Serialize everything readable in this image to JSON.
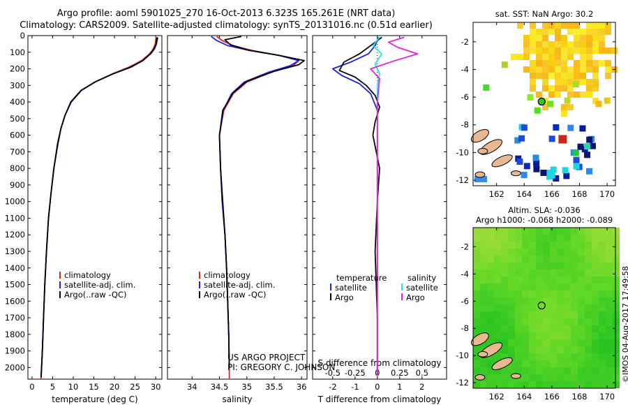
{
  "header": {
    "line1": "Argo profile: aoml 5901025_270 16-Oct-2013 6.323S 165.261E (NRT data)",
    "line2": "Climatology: CARS2009. Satellite-adjusted climatology: synTS_20131016.nc (0.51d earlier)"
  },
  "credit": "US ARGO PROJECT",
  "pi": "PI: GREGORY C. JOHNSON",
  "stamp": "©IMOS 04-Aug-2017 17:49:58",
  "colors": {
    "climatology": "#e8201a",
    "satellite": "#1a22e8",
    "argo": "#000000",
    "sat_salinity": "#22e0f0",
    "argo_salinity": "#e822d8"
  },
  "chart_data": [
    {
      "id": "temperature",
      "type": "line",
      "xlabel": "temperature (deg C)",
      "ylabel": "",
      "xlim": [
        -1,
        31.5
      ],
      "ylim": [
        2070,
        0
      ],
      "xticks": [
        "0",
        "5",
        "10",
        "15",
        "20",
        "25",
        "30"
      ],
      "xtick_values": [
        0,
        5,
        10,
        15,
        20,
        25,
        30
      ],
      "yticks": [
        "0",
        "100",
        "200",
        "300",
        "400",
        "500",
        "600",
        "700",
        "800",
        "900",
        "1000",
        "1100",
        "1200",
        "1300",
        "1400",
        "1500",
        "1600",
        "1700",
        "1800",
        "1900",
        "2000"
      ],
      "legend": [
        "climatology",
        "satellite-adj. clim.",
        "Argo(..raw -QC)"
      ],
      "series": [
        {
          "name": "climatology",
          "color": "#e8201a",
          "x": [
            30.1,
            29.9,
            29.4,
            28.5,
            26.6,
            23.5,
            19.5,
            15.2,
            12.0,
            9.5,
            8.0,
            7.0,
            6.3,
            5.3,
            4.6,
            4.0,
            3.5,
            3.1,
            2.8,
            2.5,
            2.2,
            2.1
          ],
          "depth": [
            10,
            50,
            80,
            110,
            150,
            190,
            230,
            280,
            330,
            400,
            480,
            560,
            650,
            800,
            950,
            1100,
            1300,
            1500,
            1700,
            1900,
            2060,
            2070
          ]
        },
        {
          "name": "satellite-adj. clim.",
          "color": "#1a22e8",
          "x": [
            30.5,
            30.2,
            29.7,
            28.8,
            26.9,
            23.8,
            19.6,
            15.3,
            12.0,
            9.5,
            8.0,
            7.0,
            6.3,
            5.3,
            4.6,
            4.0,
            3.5,
            3.1,
            2.8,
            2.5,
            2.2
          ],
          "depth": [
            10,
            50,
            80,
            110,
            150,
            190,
            230,
            280,
            330,
            400,
            480,
            560,
            650,
            800,
            950,
            1100,
            1300,
            1500,
            1700,
            1900,
            2060
          ]
        },
        {
          "name": "Argo(..raw -QC)",
          "color": "#000000",
          "x": [
            30.3,
            30.1,
            29.6,
            28.7,
            26.9,
            24.0,
            19.7,
            15.2,
            11.9,
            9.4,
            8.0,
            7.0,
            6.2,
            5.3,
            4.6,
            4.0,
            3.5,
            3.1,
            2.8,
            2.5,
            2.2
          ],
          "depth": [
            10,
            50,
            80,
            110,
            150,
            190,
            230,
            280,
            330,
            400,
            480,
            560,
            650,
            800,
            950,
            1100,
            1300,
            1500,
            1700,
            1900,
            2060
          ]
        }
      ]
    },
    {
      "id": "salinity",
      "type": "line",
      "xlabel": "salinity",
      "xlim": [
        33.55,
        36.1
      ],
      "ylim": [
        2070,
        0
      ],
      "xticks": [
        "34",
        "34.5",
        "35",
        "35.5",
        "36"
      ],
      "xtick_values": [
        34,
        34.5,
        35,
        35.5,
        36
      ],
      "legend": [
        "climatology",
        "satellite-adj. clim.",
        "Argo(..raw -QC)"
      ],
      "series": [
        {
          "name": "climatology",
          "color": "#e8201a",
          "x": [
            34.45,
            34.55,
            34.75,
            35.1,
            35.6,
            35.95,
            35.85,
            35.45,
            35.0,
            34.75,
            34.58,
            34.5,
            34.52,
            34.55,
            34.6,
            34.63,
            34.65,
            34.67,
            34.68,
            34.68
          ],
          "depth": [
            5,
            30,
            60,
            90,
            120,
            150,
            180,
            220,
            280,
            350,
            450,
            600,
            800,
            1000,
            1200,
            1400,
            1600,
            1800,
            2000,
            2070
          ]
        },
        {
          "name": "satellite-adj. clim.",
          "color": "#1a22e8",
          "x": [
            34.35,
            34.45,
            34.65,
            35.05,
            35.6,
            35.95,
            35.8,
            35.4,
            34.95,
            34.72,
            34.57,
            34.5,
            34.52,
            34.55,
            34.6,
            34.63,
            34.65,
            34.67,
            34.68
          ],
          "depth": [
            5,
            30,
            60,
            90,
            120,
            150,
            180,
            220,
            280,
            350,
            450,
            600,
            800,
            1000,
            1200,
            1400,
            1600,
            1800,
            2000
          ]
        },
        {
          "name": "Argo(..raw -QC)",
          "color": "#000000",
          "x": [
            34.9,
            34.6,
            34.7,
            35.0,
            35.6,
            36.05,
            35.95,
            35.5,
            35.0,
            34.75,
            34.56,
            34.5,
            34.52,
            34.56,
            34.6,
            34.63,
            34.65,
            34.67,
            34.68
          ],
          "depth": [
            5,
            25,
            55,
            85,
            120,
            150,
            175,
            215,
            275,
            345,
            450,
            600,
            800,
            1000,
            1200,
            1400,
            1600,
            1800,
            2000
          ]
        }
      ]
    },
    {
      "id": "difference",
      "type": "line",
      "xlabel": "T difference from climatology",
      "xlabel_top": "S difference from climatology",
      "xlim": [
        -2.9,
        3.1
      ],
      "ylim": [
        2070,
        0
      ],
      "xticks": [
        "-2",
        "-1",
        "0",
        "1",
        "2"
      ],
      "xtick_values": [
        -2,
        -1,
        0,
        1,
        2
      ],
      "xticks_top": [
        "-0.5",
        "-0.25",
        "0",
        "0.25",
        "0.5"
      ],
      "xtick_values_top": [
        -2,
        -1,
        0,
        1,
        2
      ],
      "legend": [
        "temperature",
        "satellite",
        "Argo",
        "salinity",
        "satellite",
        "Argo"
      ],
      "series": [
        {
          "name": "temperature satellite",
          "color": "#1a22e8",
          "x": [
            0.05,
            -0.1,
            -0.4,
            -1.2,
            -2.0,
            -1.6,
            -0.8,
            -0.3,
            0.0,
            0.0,
            0.0,
            0.0,
            0.0
          ],
          "depth": [
            10,
            60,
            110,
            160,
            200,
            240,
            290,
            350,
            450,
            600,
            1000,
            1500,
            2050
          ]
        },
        {
          "name": "temperature Argo",
          "color": "#000000",
          "x": [
            0.2,
            -0.3,
            -0.8,
            -1.5,
            -1.7,
            -1.0,
            -0.5,
            -0.1,
            0.1,
            -0.1,
            -0.2,
            0.1,
            0.0,
            -0.1,
            0.0,
            0.0
          ],
          "depth": [
            10,
            60,
            110,
            160,
            210,
            250,
            300,
            360,
            430,
            520,
            600,
            800,
            1000,
            1300,
            1700,
            2050
          ]
        },
        {
          "name": "salinity satellite",
          "color": "#22e0f0",
          "x": [
            0.1,
            -0.2,
            0.2,
            -0.1,
            0.1,
            0.0,
            0.0,
            0.0,
            0.0
          ],
          "depth": [
            10,
            60,
            110,
            170,
            230,
            300,
            500,
            1000,
            2050
          ]
        },
        {
          "name": "salinity Argo",
          "color": "#e822d8",
          "x": [
            1.2,
            0.5,
            0.9,
            1.8,
            0.8,
            -0.3,
            0.1,
            0.0,
            0.0,
            0.0
          ],
          "depth": [
            10,
            40,
            70,
            110,
            150,
            200,
            260,
            400,
            1000,
            2050
          ]
        }
      ]
    },
    {
      "id": "sst-map",
      "type": "heatmap",
      "title": "sat. SST: NaN Argo: 30.2",
      "xlim": [
        160.3,
        170.6
      ],
      "ylim": [
        -12.4,
        -0.6
      ],
      "xticks": [
        "162",
        "164",
        "166",
        "168",
        "170"
      ],
      "xtick_values": [
        162,
        164,
        166,
        168,
        170
      ],
      "yticks": [
        "-2",
        "-4",
        "-6",
        "-8",
        "-10",
        "-12"
      ],
      "ytick_values": [
        -2,
        -4,
        -6,
        -8,
        -10,
        -12
      ],
      "marker": {
        "lon": 165.261,
        "lat": -6.323,
        "color": "#2ec52e"
      }
    },
    {
      "id": "sla-map",
      "type": "heatmap",
      "title": "Altim. SLA: -0.036",
      "subtitle": "Argo h1000: -0.068 h2000: -0.089",
      "xlim": [
        160.3,
        170.6
      ],
      "ylim": [
        -12.4,
        -0.6
      ],
      "xticks": [
        "162",
        "164",
        "166",
        "168",
        "170"
      ],
      "xtick_values": [
        162,
        164,
        166,
        168,
        170
      ],
      "yticks": [
        "-2",
        "-4",
        "-6",
        "-8",
        "-10",
        "-12"
      ],
      "ytick_values": [
        -2,
        -4,
        -6,
        -8,
        -10,
        -12
      ],
      "marker": {
        "lon": 165.261,
        "lat": -6.323,
        "color": "none"
      }
    }
  ]
}
